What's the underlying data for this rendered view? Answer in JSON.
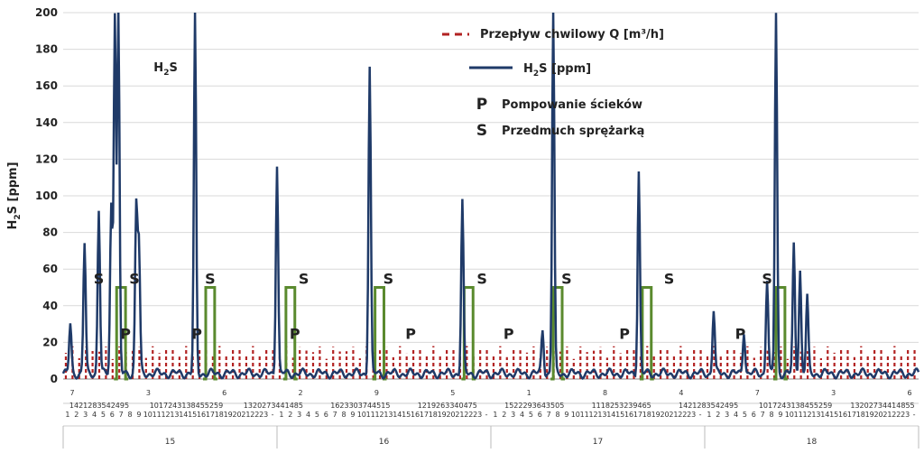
{
  "chart_data": {
    "type": "line",
    "title": "",
    "xlabel": "",
    "ylabel": "H2S [ppm]",
    "ylim": [
      0,
      200
    ],
    "yticks": [
      0,
      20,
      40,
      60,
      80,
      100,
      120,
      140,
      160,
      180,
      200
    ],
    "days": [
      "15",
      "16",
      "17",
      "18"
    ],
    "hours_per_day": 24,
    "grid": {
      "x": false,
      "y": true
    },
    "legend": {
      "position": "top-right",
      "items": [
        {
          "label": "Przepływ chwilowy Q [m³/h]",
          "style": "dashed",
          "color": "#b22222"
        },
        {
          "label": "H2S [ppm]",
          "style": "solid",
          "color": "#1f3a68"
        }
      ]
    },
    "annotations": {
      "P_label": "Pompowanie ścieków",
      "S_label": "Przedmuch sprężarką",
      "h2s_label": "H2S",
      "P_marker": "P",
      "S_marker": "S",
      "P_hours": [
        7,
        15,
        26,
        39,
        50,
        63,
        76
      ],
      "S_hours": [
        4,
        8,
        16.5,
        27,
        36.5,
        47,
        56.5,
        68,
        79
      ]
    },
    "series": [
      {
        "name": "H2S [ppm]",
        "color": "#1f3a68",
        "baseline": 3,
        "peaks": [
          [
            0.8,
            30
          ],
          [
            2.4,
            74
          ],
          [
            4.0,
            93
          ],
          [
            5.4,
            95
          ],
          [
            5.8,
            200
          ],
          [
            6.2,
            200
          ],
          [
            8.2,
            94
          ],
          [
            8.5,
            73
          ],
          [
            14.8,
            200
          ],
          [
            24.0,
            118
          ],
          [
            34.4,
            171
          ],
          [
            44.8,
            97
          ],
          [
            53.8,
            27
          ],
          [
            55.0,
            200
          ],
          [
            64.6,
            114
          ],
          [
            73.0,
            38
          ],
          [
            76.4,
            27
          ],
          [
            79.0,
            55
          ],
          [
            80.0,
            200
          ],
          [
            82.0,
            73
          ],
          [
            82.7,
            60
          ],
          [
            83.5,
            45
          ]
        ]
      },
      {
        "name": "Q [m³/h]",
        "color": "#b22222",
        "amplitude": 18
      },
      {
        "name": "S",
        "color": "#5a8a2e",
        "value": 50,
        "pulse_hours": [
          [
            6,
            7
          ],
          [
            16,
            17
          ],
          [
            25,
            26
          ],
          [
            35,
            36
          ],
          [
            45,
            46
          ],
          [
            55,
            56
          ],
          [
            65,
            66
          ],
          [
            80,
            81
          ]
        ]
      }
    ],
    "x_tick_labels_row1": [
      "7",
      "3",
      "6",
      "2",
      "9",
      "5",
      "1",
      "8",
      "4",
      "7",
      "3",
      "6"
    ],
    "x_tick_labels_row2": [
      "1421283542495",
      "1017243138455259",
      "1320273441485",
      "1623303744515",
      "1219263340475",
      "1522293643505",
      "1118253239465",
      "1421283542495",
      "1017243138455259",
      "13202734414855"
    ],
    "hour_labels": [
      "1",
      "2",
      "3",
      "4",
      "5",
      "6",
      "7",
      "8",
      "9",
      "10",
      "11",
      "12",
      "13",
      "14",
      "15",
      "16",
      "17",
      "18",
      "19",
      "20",
      "21",
      "22",
      "23",
      "-"
    ]
  }
}
